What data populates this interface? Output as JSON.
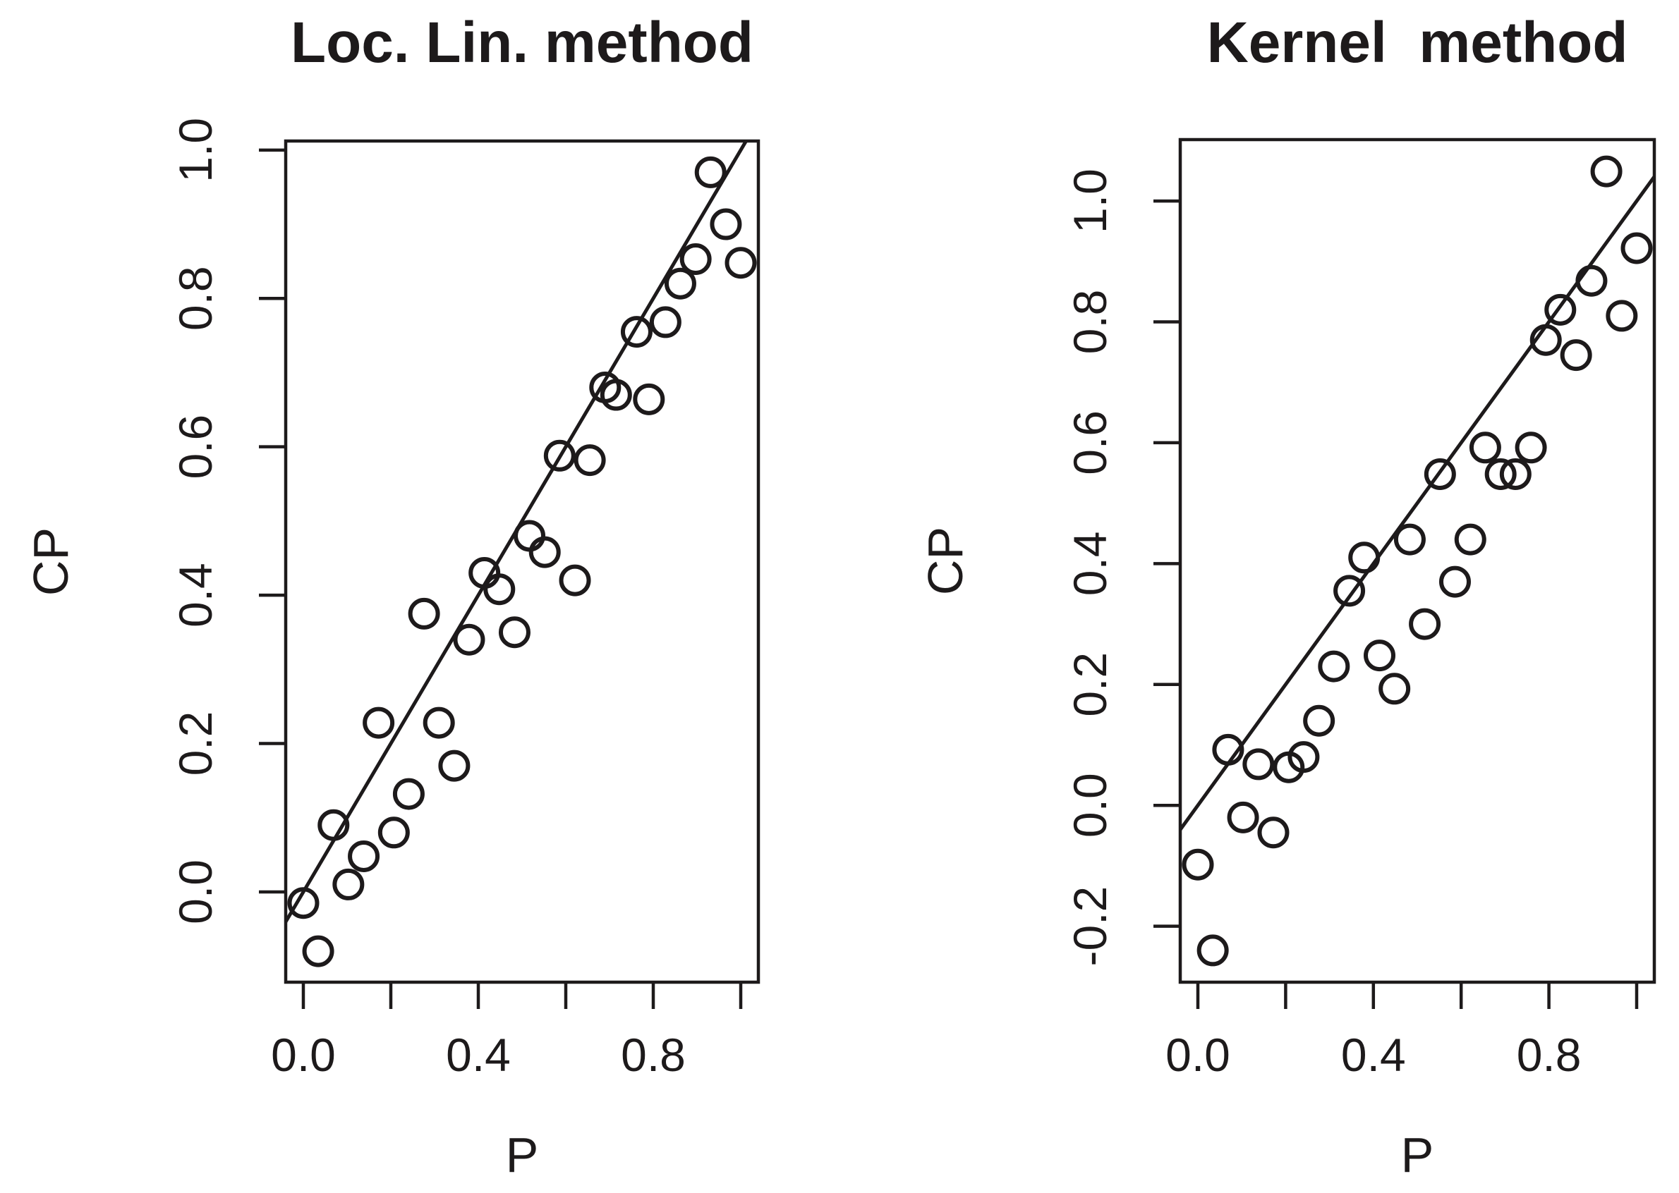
{
  "figure": {
    "background": "#ffffff",
    "ink_color": "#1d1a1b",
    "marker": "open-circle",
    "grid": false,
    "legend": "none"
  },
  "chart_data": [
    {
      "type": "scatter",
      "panel": "left",
      "title": "Loc. Lin. method",
      "xlabel": "P",
      "ylabel": "CP",
      "xlim": [
        -0.0403,
        1.0403
      ],
      "ylim": [
        -0.1217,
        1.0122
      ],
      "xticks": {
        "values": [
          0.0,
          0.2,
          0.4,
          0.6,
          0.8,
          1.0
        ],
        "labels": [
          "0.0",
          "",
          "0.4",
          "",
          "0.8",
          ""
        ]
      },
      "yticks": {
        "values": [
          0.0,
          0.2,
          0.4,
          0.6,
          0.8,
          1.0
        ],
        "labels": [
          "0.0",
          "0.2",
          "0.4",
          "0.6",
          "0.8",
          "1.0"
        ]
      },
      "reference_line": {
        "type": "identity",
        "slope": 1,
        "intercept": 0
      },
      "points": [
        [
          0.0,
          -0.015
        ],
        [
          0.034,
          -0.08
        ],
        [
          0.069,
          0.09
        ],
        [
          0.103,
          0.01
        ],
        [
          0.138,
          0.048
        ],
        [
          0.172,
          0.228
        ],
        [
          0.207,
          0.08
        ],
        [
          0.241,
          0.132
        ],
        [
          0.276,
          0.375
        ],
        [
          0.31,
          0.228
        ],
        [
          0.345,
          0.17
        ],
        [
          0.379,
          0.34
        ],
        [
          0.414,
          0.43
        ],
        [
          0.448,
          0.408
        ],
        [
          0.483,
          0.35
        ],
        [
          0.517,
          0.48
        ],
        [
          0.552,
          0.458
        ],
        [
          0.586,
          0.588
        ],
        [
          0.621,
          0.42
        ],
        [
          0.655,
          0.582
        ],
        [
          0.69,
          0.68
        ],
        [
          0.715,
          0.67
        ],
        [
          0.79,
          0.664
        ],
        [
          0.762,
          0.755
        ],
        [
          0.828,
          0.768
        ],
        [
          0.862,
          0.82
        ],
        [
          0.897,
          0.853
        ],
        [
          0.931,
          0.97
        ],
        [
          0.966,
          0.9
        ],
        [
          1.0,
          0.848
        ]
      ]
    },
    {
      "type": "scatter",
      "panel": "right",
      "title": "Kernel  method",
      "xlabel": "P",
      "ylabel": "CP",
      "xlim": [
        -0.0402,
        1.0402
      ],
      "ylim": [
        -0.2926,
        1.1016
      ],
      "xticks": {
        "values": [
          0.0,
          0.2,
          0.4,
          0.6,
          0.8,
          1.0
        ],
        "labels": [
          "0.0",
          "",
          "0.4",
          "",
          "0.8",
          ""
        ]
      },
      "yticks": {
        "values": [
          -0.2,
          0.0,
          0.2,
          0.4,
          0.6,
          0.8,
          1.0
        ],
        "labels": [
          "-0.2",
          "0.0",
          "0.2",
          "0.4",
          "0.6",
          "0.8",
          "1.0"
        ]
      },
      "reference_line": {
        "type": "identity",
        "slope": 1,
        "intercept": 0
      },
      "points": [
        [
          0.0,
          -0.098
        ],
        [
          0.034,
          -0.24
        ],
        [
          0.069,
          0.092
        ],
        [
          0.103,
          -0.02
        ],
        [
          0.138,
          0.068
        ],
        [
          0.172,
          -0.045
        ],
        [
          0.207,
          0.063
        ],
        [
          0.241,
          0.08
        ],
        [
          0.276,
          0.14
        ],
        [
          0.31,
          0.23
        ],
        [
          0.345,
          0.355
        ],
        [
          0.379,
          0.41
        ],
        [
          0.414,
          0.248
        ],
        [
          0.448,
          0.193
        ],
        [
          0.483,
          0.44
        ],
        [
          0.517,
          0.3
        ],
        [
          0.552,
          0.548
        ],
        [
          0.586,
          0.37
        ],
        [
          0.621,
          0.44
        ],
        [
          0.655,
          0.592
        ],
        [
          0.69,
          0.548
        ],
        [
          0.724,
          0.548
        ],
        [
          0.759,
          0.592
        ],
        [
          0.793,
          0.77
        ],
        [
          0.826,
          0.82
        ],
        [
          0.862,
          0.745
        ],
        [
          0.897,
          0.868
        ],
        [
          0.931,
          1.049
        ],
        [
          0.966,
          0.81
        ],
        [
          1.0,
          0.922
        ]
      ]
    }
  ]
}
